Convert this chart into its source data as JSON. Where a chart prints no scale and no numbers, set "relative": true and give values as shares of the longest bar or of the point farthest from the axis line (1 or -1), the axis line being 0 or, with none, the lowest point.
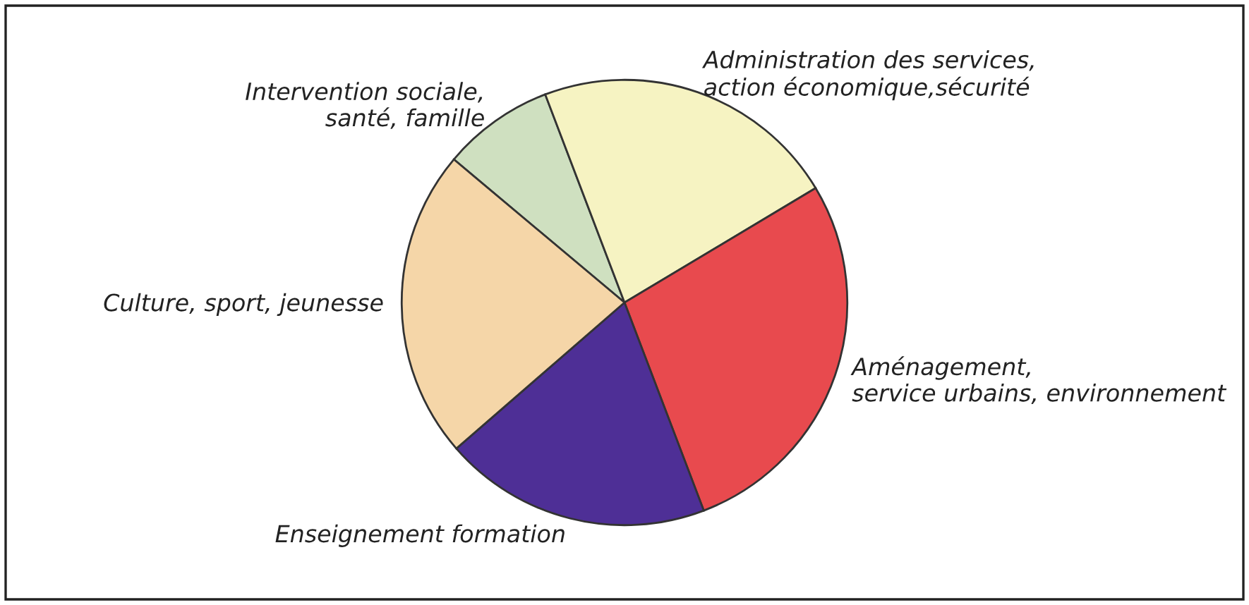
{
  "chart_data": {
    "type": "pie",
    "relative": true,
    "categories": [
      "Intervention sociale,\nsanté, famille",
      "Administration des services,\naction économique,sécurité",
      "Aménagement,\nservice urbains, environnement",
      "Enseignement formation",
      "Culture, sport, jeunesse"
    ],
    "values": [
      8.1,
      22.2,
      27.8,
      19.4,
      22.5
    ],
    "colors": [
      "#cfe0c0",
      "#f6f3c2",
      "#e84a4e",
      "#4e2f96",
      "#f5d6a8"
    ]
  }
}
